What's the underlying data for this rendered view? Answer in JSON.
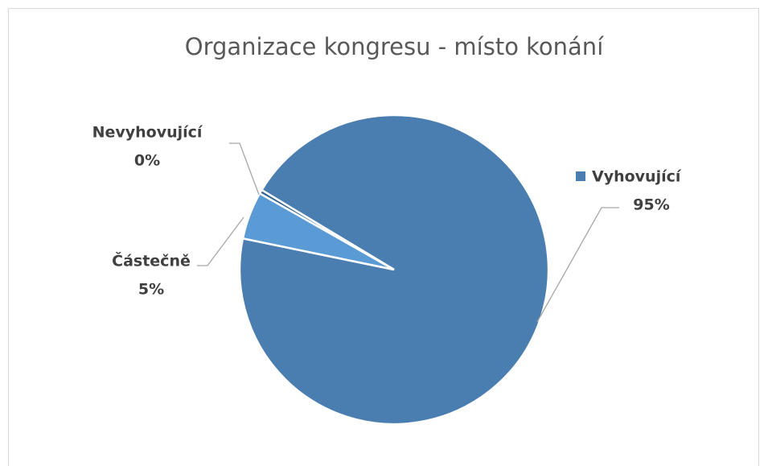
{
  "chart_data": {
    "type": "pie",
    "title": "Organizace kongresu - místo konání",
    "categories": [
      "Vyhovující",
      "Částečně",
      "Nevyhovující"
    ],
    "values": [
      95,
      5,
      0.4
    ],
    "value_labels": [
      "95%",
      "5%",
      "0%"
    ],
    "colors": [
      "#4a7eb0",
      "#5b9bd5",
      "#2f5f8f"
    ]
  }
}
